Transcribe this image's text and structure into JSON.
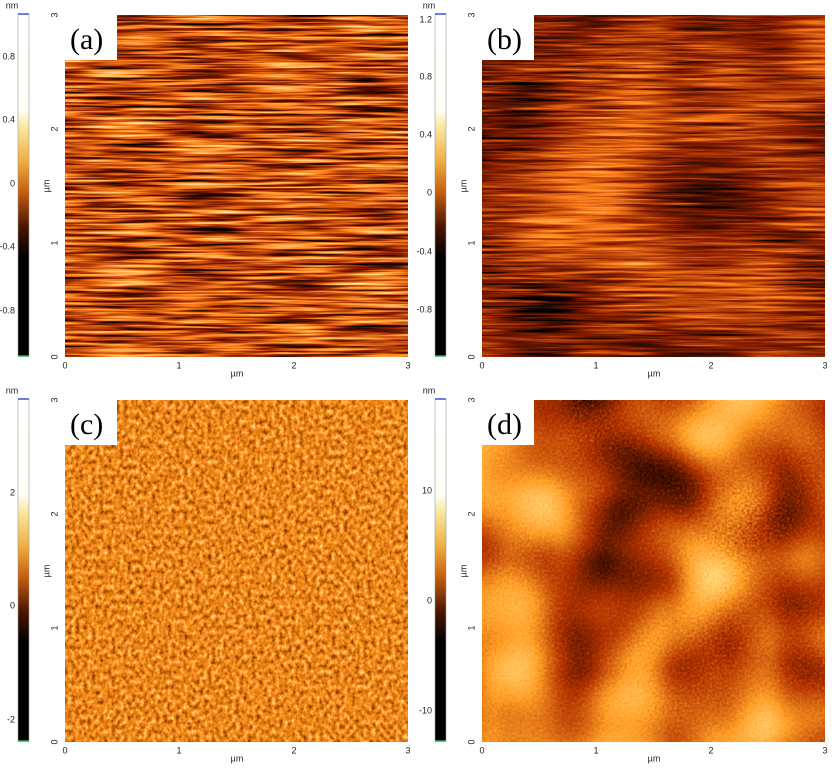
{
  "panels": [
    {
      "label": "(a)",
      "colorbar": {
        "unit": "nm",
        "ticks": [
          "0.8",
          "0.4",
          "0",
          "-0.4",
          "-0.8"
        ]
      },
      "y_axis": {
        "unit": "µm",
        "ticks": [
          "0",
          "1",
          "2",
          "3"
        ]
      },
      "x_axis": {
        "unit": "µm",
        "ticks": [
          "0",
          "1",
          "2",
          "3"
        ]
      }
    },
    {
      "label": "(b)",
      "colorbar": {
        "unit": "nm",
        "ticks": [
          "1.2",
          "0.8",
          "0.4",
          "0",
          "-0.4",
          "-0.8"
        ]
      },
      "y_axis": {
        "unit": "µm",
        "ticks": [
          "0",
          "1",
          "2",
          "3"
        ]
      },
      "x_axis": {
        "unit": "µm",
        "ticks": [
          "0",
          "1",
          "2",
          "3"
        ]
      }
    },
    {
      "label": "(c)",
      "colorbar": {
        "unit": "nm",
        "ticks": [
          "2",
          "0",
          "-2"
        ]
      },
      "y_axis": {
        "unit": "µm",
        "ticks": [
          "0",
          "1",
          "2",
          "3"
        ]
      },
      "x_axis": {
        "unit": "µm",
        "ticks": [
          "0",
          "1",
          "2",
          "3"
        ]
      }
    },
    {
      "label": "(d)",
      "colorbar": {
        "unit": "nm",
        "ticks": [
          "10",
          "0",
          "-10"
        ]
      },
      "y_axis": {
        "unit": "µm",
        "ticks": [
          "0",
          "1",
          "2",
          "3"
        ]
      },
      "x_axis": {
        "unit": "µm",
        "ticks": [
          "0",
          "1",
          "2",
          "3"
        ]
      }
    }
  ]
}
